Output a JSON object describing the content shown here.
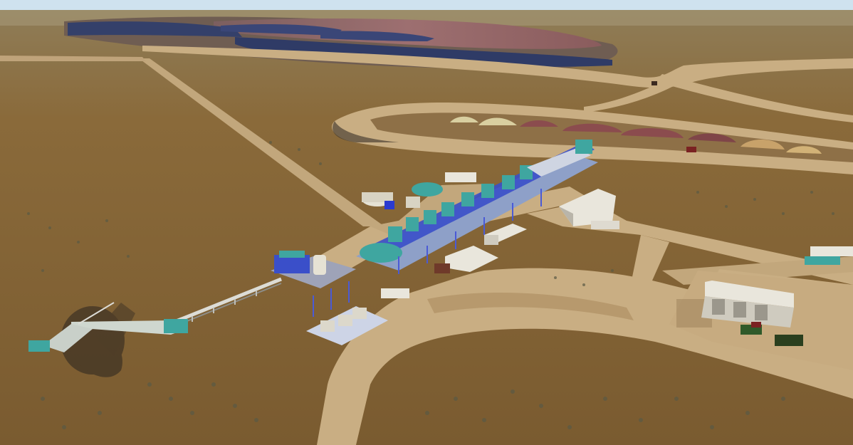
{
  "scene": {
    "kind": "aerial-render",
    "subject": "mine-processing-plant",
    "palette": {
      "sky": "#cfe2ef",
      "desert": "#8a6a3a",
      "desert_light": "#9c7a47",
      "desert_dark": "#6f5530",
      "road": "#c8ad82",
      "road_edge": "#b59a70",
      "pit_wall": "#9a6b6b",
      "pit_bench": "#2f3b66",
      "stockpile_light": "#d9cfa0",
      "stockpile_red": "#8b4c4e",
      "stockpile_tan": "#c8a26a",
      "plant_blue": "#3a4fc9",
      "plant_teal": "#3fa6a0",
      "building": "#e9e6dc",
      "building_shadow": "#b9b5aa",
      "shadow": "#2a241f"
    }
  }
}
